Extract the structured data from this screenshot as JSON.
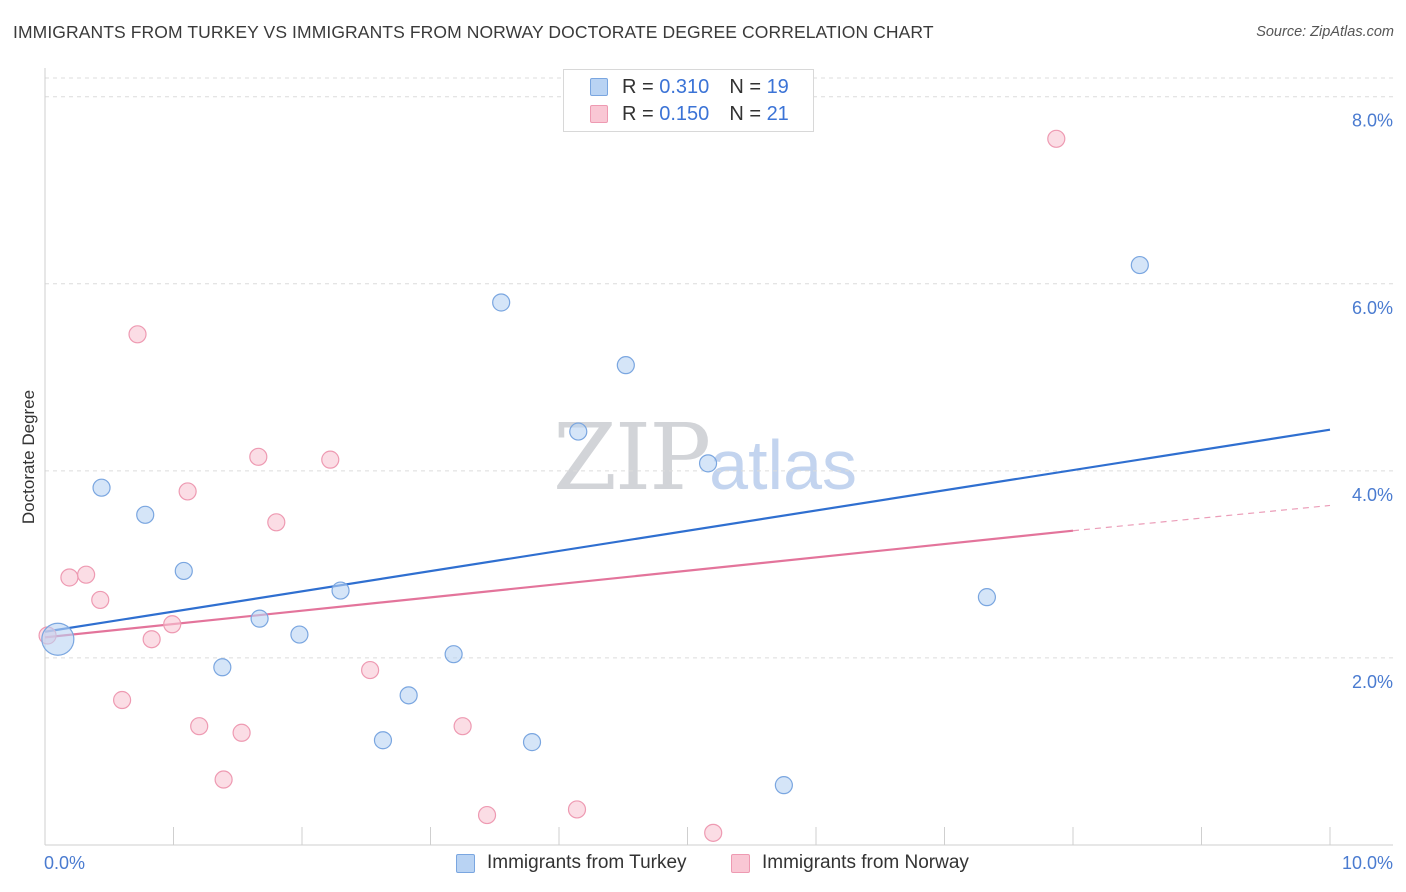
{
  "title": "IMMIGRANTS FROM TURKEY VS IMMIGRANTS FROM NORWAY DOCTORATE DEGREE CORRELATION CHART",
  "source": "Source: ZipAtlas.com",
  "watermark": {
    "zip": "ZIP",
    "atlas": "atlas"
  },
  "legend": {
    "turkey": {
      "r_label": "R = ",
      "r_value": "0.310",
      "n_label": "N = ",
      "n_value": "19"
    },
    "norway": {
      "r_label": "R = ",
      "r_value": "0.150",
      "n_label": "N = ",
      "n_value": "21"
    }
  },
  "colors": {
    "turkey_fill": "#b9d3f3",
    "turkey_stroke": "#7aa6e0",
    "turkey_line": "#2f6fd0",
    "norway_fill": "#f9c7d4",
    "norway_stroke": "#ee9ab2",
    "norway_line": "#e3749b",
    "axis_text": "#4a7bd0",
    "grid": "#dcdcdc"
  },
  "chart_data": {
    "type": "scatter",
    "title": "IMMIGRANTS FROM TURKEY VS IMMIGRANTS FROM NORWAY DOCTORATE DEGREE CORRELATION CHART",
    "xlabel": "",
    "ylabel": "Doctorate Degree",
    "xlim": [
      0,
      10
    ],
    "ylim": [
      0,
      8.2
    ],
    "x_tick_labels": [
      "0.0%",
      "10.0%"
    ],
    "y_ticks": [
      2,
      4,
      6,
      8
    ],
    "y_tick_labels": [
      "2.0%",
      "4.0%",
      "6.0%",
      "8.0%"
    ],
    "grid": true,
    "legend_position": "top-center",
    "series": [
      {
        "name": "Immigrants from Turkey",
        "r": 0.31,
        "n": 19,
        "points": [
          {
            "x": 0.1,
            "y": 2.2,
            "big": true
          },
          {
            "x": 0.44,
            "y": 3.82
          },
          {
            "x": 0.78,
            "y": 3.53
          },
          {
            "x": 1.08,
            "y": 2.93
          },
          {
            "x": 1.38,
            "y": 1.9
          },
          {
            "x": 1.67,
            "y": 2.42
          },
          {
            "x": 1.98,
            "y": 2.25
          },
          {
            "x": 2.3,
            "y": 2.72
          },
          {
            "x": 2.63,
            "y": 1.12
          },
          {
            "x": 2.83,
            "y": 1.6
          },
          {
            "x": 3.18,
            "y": 2.04
          },
          {
            "x": 3.55,
            "y": 5.8
          },
          {
            "x": 3.79,
            "y": 1.1
          },
          {
            "x": 4.15,
            "y": 4.42
          },
          {
            "x": 4.52,
            "y": 5.13
          },
          {
            "x": 5.16,
            "y": 4.08
          },
          {
            "x": 5.75,
            "y": 0.64
          },
          {
            "x": 7.33,
            "y": 2.65
          },
          {
            "x": 8.52,
            "y": 6.2
          }
        ],
        "trend": {
          "x0": 0,
          "y0": 2.28,
          "x1": 10,
          "y1": 4.44
        }
      },
      {
        "name": "Immigrants from Norway",
        "r": 0.15,
        "n": 21,
        "points": [
          {
            "x": 0.02,
            "y": 2.24
          },
          {
            "x": 0.19,
            "y": 2.86
          },
          {
            "x": 0.32,
            "y": 2.89
          },
          {
            "x": 0.43,
            "y": 2.62
          },
          {
            "x": 0.6,
            "y": 1.55
          },
          {
            "x": 0.72,
            "y": 5.46
          },
          {
            "x": 0.83,
            "y": 2.2
          },
          {
            "x": 0.99,
            "y": 2.36
          },
          {
            "x": 1.11,
            "y": 3.78
          },
          {
            "x": 1.2,
            "y": 1.27
          },
          {
            "x": 1.39,
            "y": 0.7
          },
          {
            "x": 1.53,
            "y": 1.2
          },
          {
            "x": 1.66,
            "y": 4.15
          },
          {
            "x": 1.8,
            "y": 3.45
          },
          {
            "x": 2.22,
            "y": 4.12
          },
          {
            "x": 2.53,
            "y": 1.87
          },
          {
            "x": 3.25,
            "y": 1.27
          },
          {
            "x": 3.44,
            "y": 0.32
          },
          {
            "x": 4.14,
            "y": 0.38
          },
          {
            "x": 5.2,
            "y": 0.13
          },
          {
            "x": 7.87,
            "y": 7.55
          }
        ],
        "trend": {
          "x0": 0,
          "y0": 2.22,
          "x1": 8,
          "y1": 3.36
        },
        "trend_dashed": {
          "x0": 8,
          "y0": 3.36,
          "x1": 10,
          "y1": 3.63
        }
      }
    ]
  },
  "bottom_legend": {
    "turkey": "Immigrants from Turkey",
    "norway": "Immigrants from Norway"
  }
}
